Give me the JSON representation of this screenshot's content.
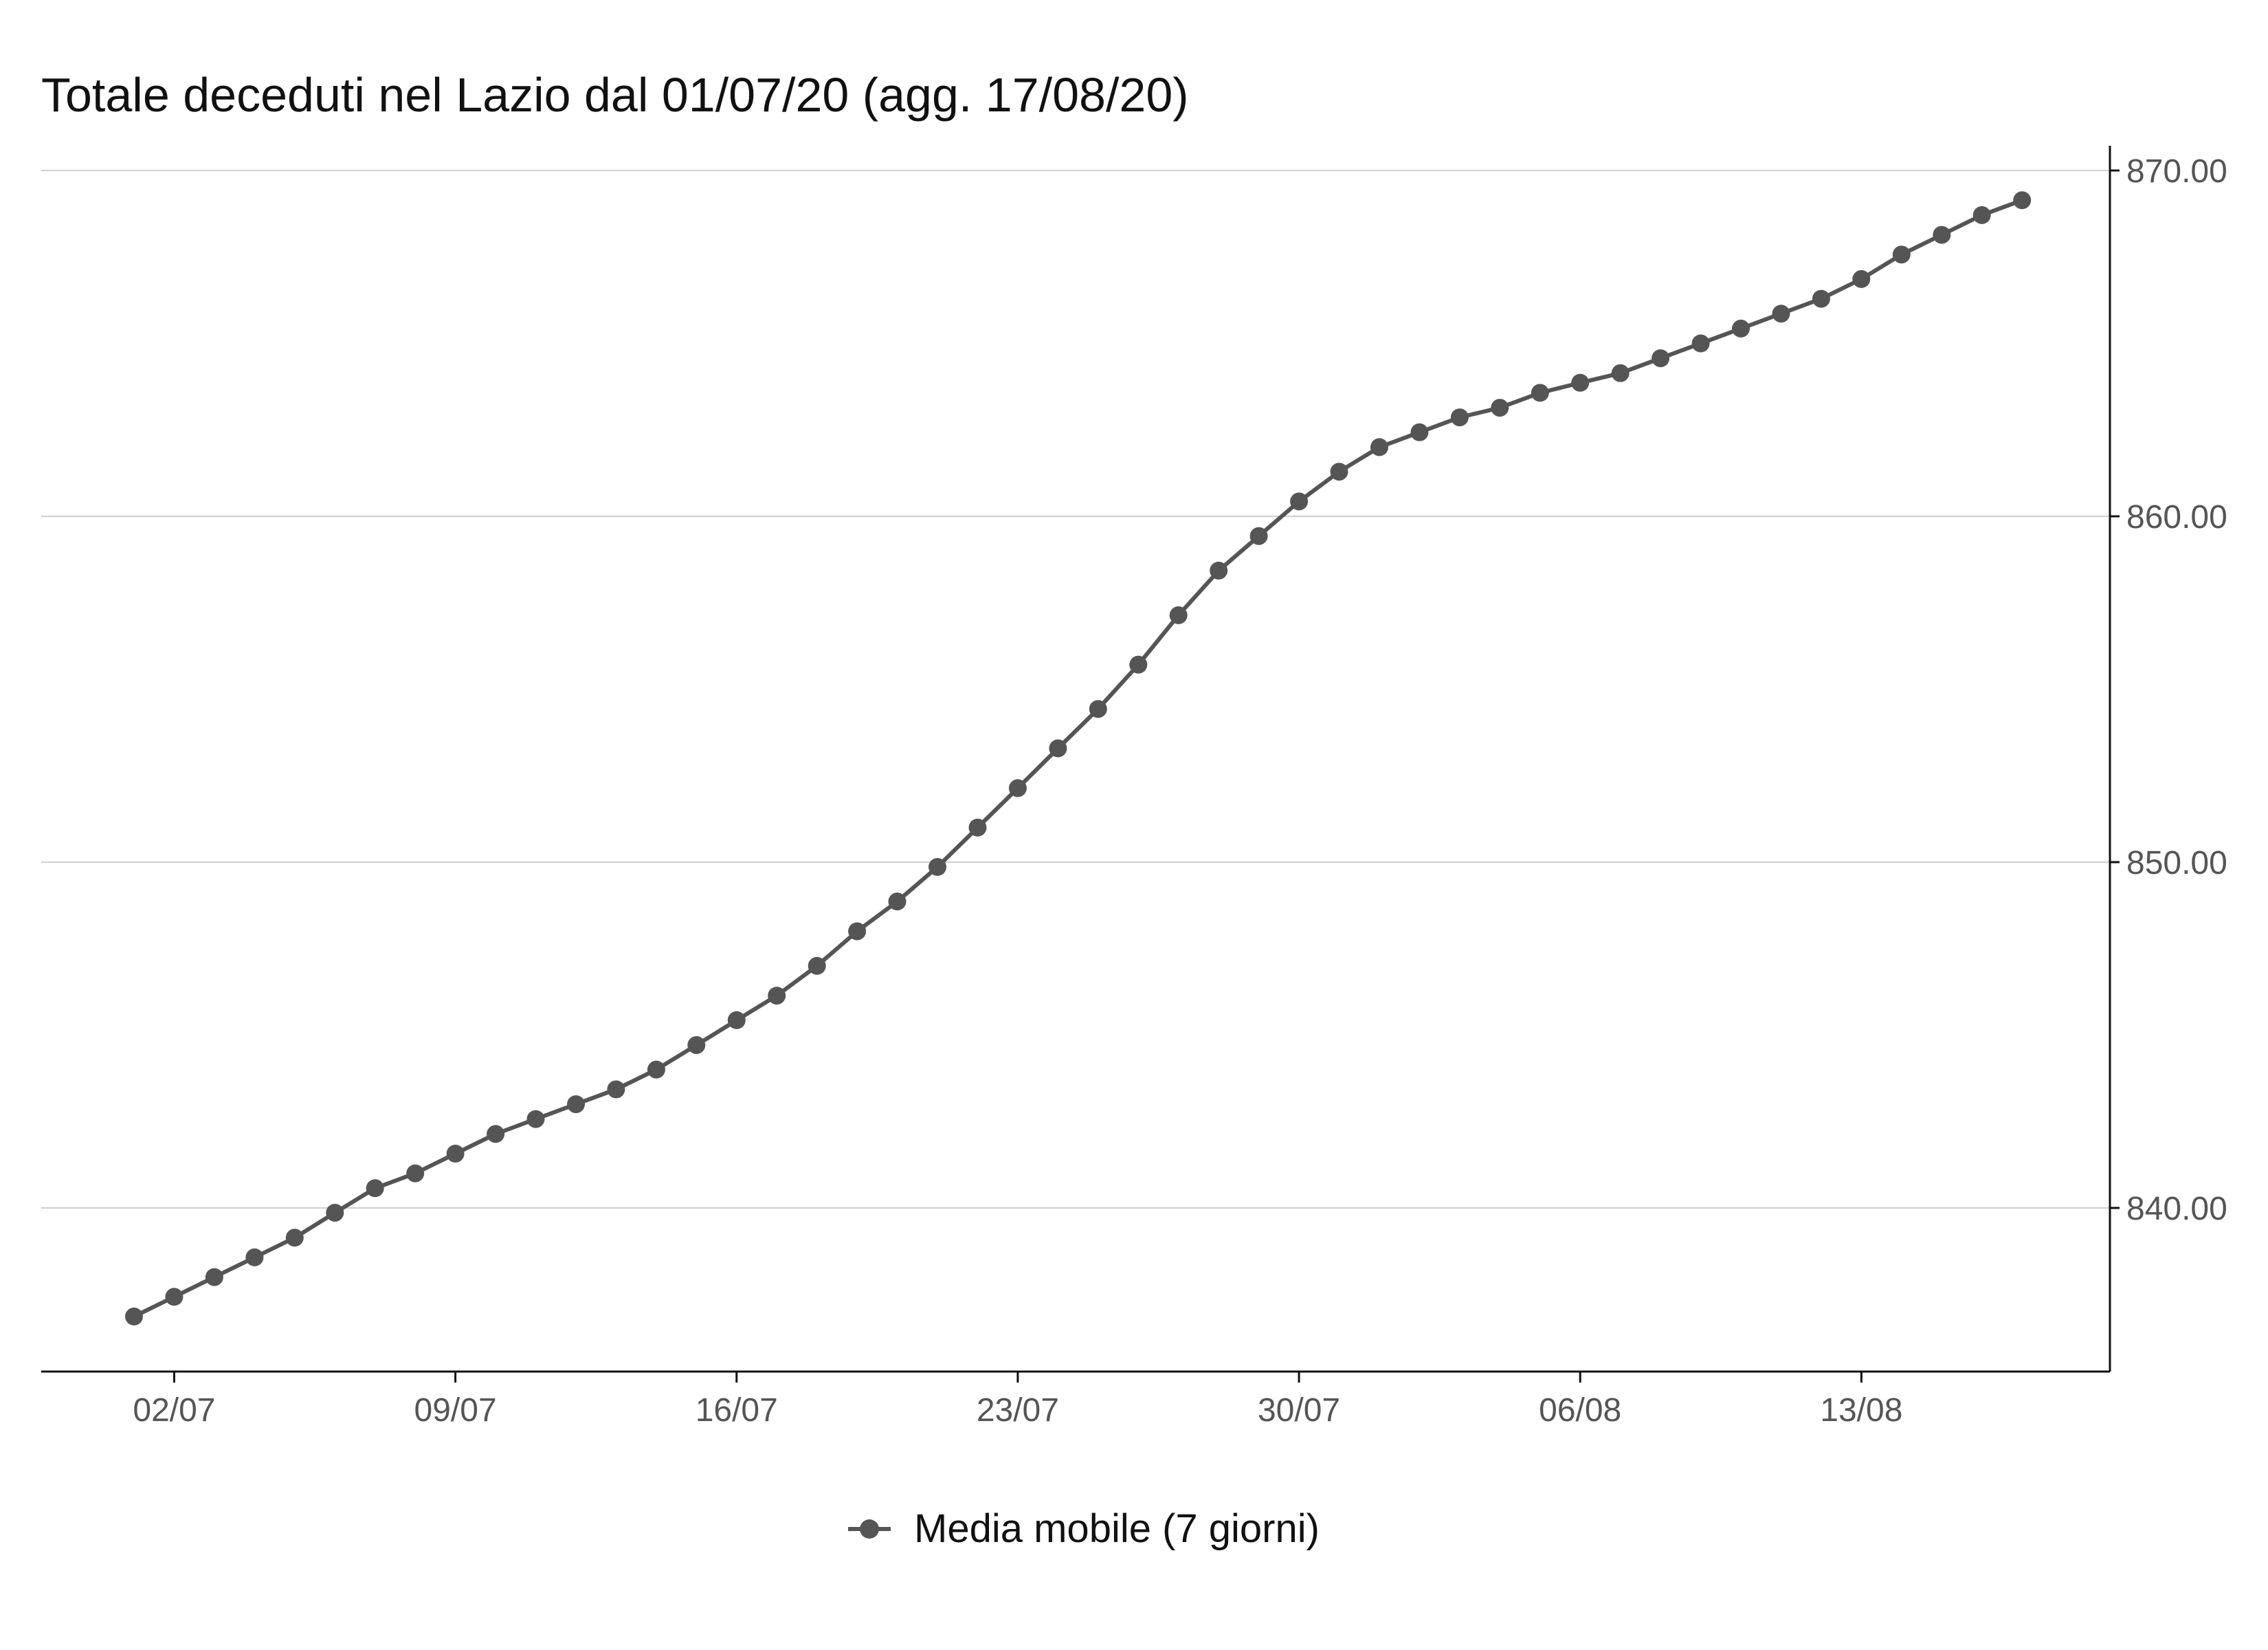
{
  "colors": {
    "line": "#555555",
    "grid": "#cfcfcf",
    "axis": "#111111"
  },
  "chart_data": {
    "type": "line",
    "title": "Totale deceduti nel Lazio dal 01/07/20 (agg. 17/08/20)",
    "xlabel": "",
    "ylabel": "",
    "x_start": "01/07",
    "x_end": "17/08",
    "x_tick_labels": [
      "02/07",
      "09/07",
      "16/07",
      "23/07",
      "30/07",
      "06/08",
      "13/08"
    ],
    "y_tick_labels": [
      "840.00",
      "850.00",
      "860.00",
      "870.00"
    ],
    "y_ticks": [
      840,
      850,
      860,
      870
    ],
    "ylim": [
      835,
      870.7
    ],
    "grid": "horizontal",
    "y_axis_position": "right",
    "legend_position": "bottom",
    "series": [
      {
        "name": "Media mobile (7 giorni)",
        "color": "#555555",
        "marker": "circle",
        "values": [
          836.86,
          837.43,
          838.0,
          838.57,
          839.14,
          839.86,
          840.57,
          841.0,
          841.57,
          842.14,
          842.57,
          843.0,
          843.43,
          844.0,
          844.71,
          845.43,
          846.14,
          847.0,
          848.0,
          848.86,
          849.86,
          851.0,
          852.14,
          853.29,
          854.43,
          855.71,
          857.14,
          858.43,
          859.43,
          860.43,
          861.29,
          862.0,
          862.43,
          862.86,
          863.14,
          863.57,
          863.86,
          864.14,
          864.57,
          865.0,
          865.43,
          865.86,
          866.29,
          866.86,
          867.57,
          868.14,
          868.71,
          869.14
        ]
      }
    ]
  }
}
